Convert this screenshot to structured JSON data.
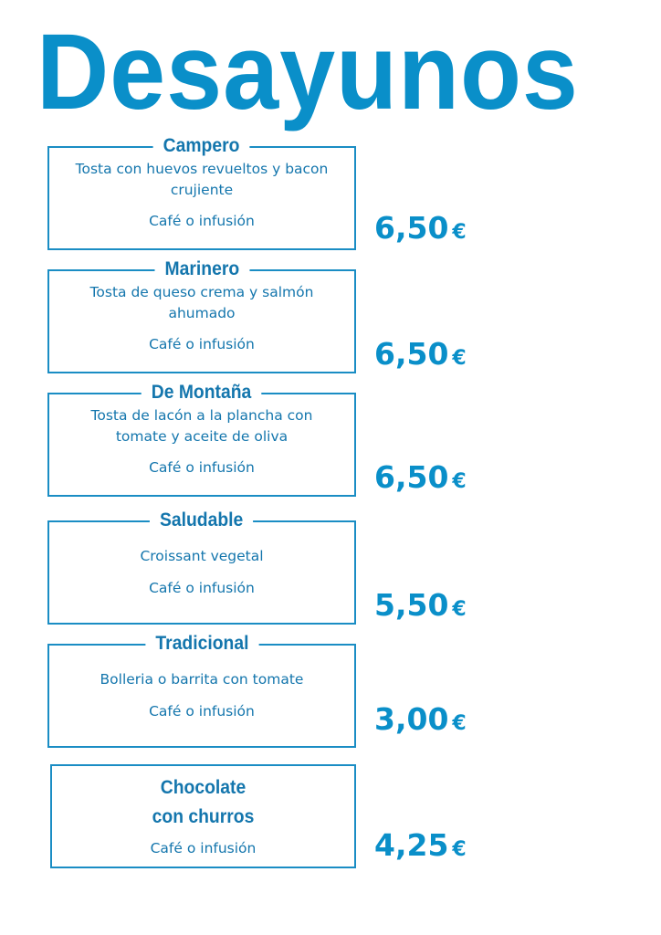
{
  "title": "Desayunos",
  "items": [
    {
      "name": "Campero",
      "desc_lines": [
        "Tosta con huevos revueltos y bacon",
        "crujiente"
      ],
      "drink": "Café o infusión",
      "price": "6,50",
      "currency": "€"
    },
    {
      "name": "Marinero",
      "desc_lines": [
        "Tosta de queso crema y salmón",
        "ahumado"
      ],
      "drink": "Café o infusión",
      "price": "6,50",
      "currency": "€"
    },
    {
      "name": "De Montaña",
      "desc_lines": [
        "Tosta de lacón a la plancha con",
        "tomate y aceite de oliva"
      ],
      "drink": "Café o infusión",
      "price": "6,50",
      "currency": "€"
    },
    {
      "name": "Saludable",
      "desc_lines": [
        "Croissant vegetal"
      ],
      "drink": "Café o infusión",
      "price": "5,50",
      "currency": "€"
    },
    {
      "name": "Tradicional",
      "desc_lines": [
        "Bolleria o barrita con tomate"
      ],
      "drink": "Café o infusión",
      "price": "3,00",
      "currency": "€"
    },
    {
      "name_lines": [
        "Chocolate",
        "con churros"
      ],
      "drink": "Café o infusión",
      "price": "4,25",
      "currency": "€"
    }
  ],
  "colors": {
    "primary": "#0a8fc9",
    "text": "#1476ad"
  }
}
